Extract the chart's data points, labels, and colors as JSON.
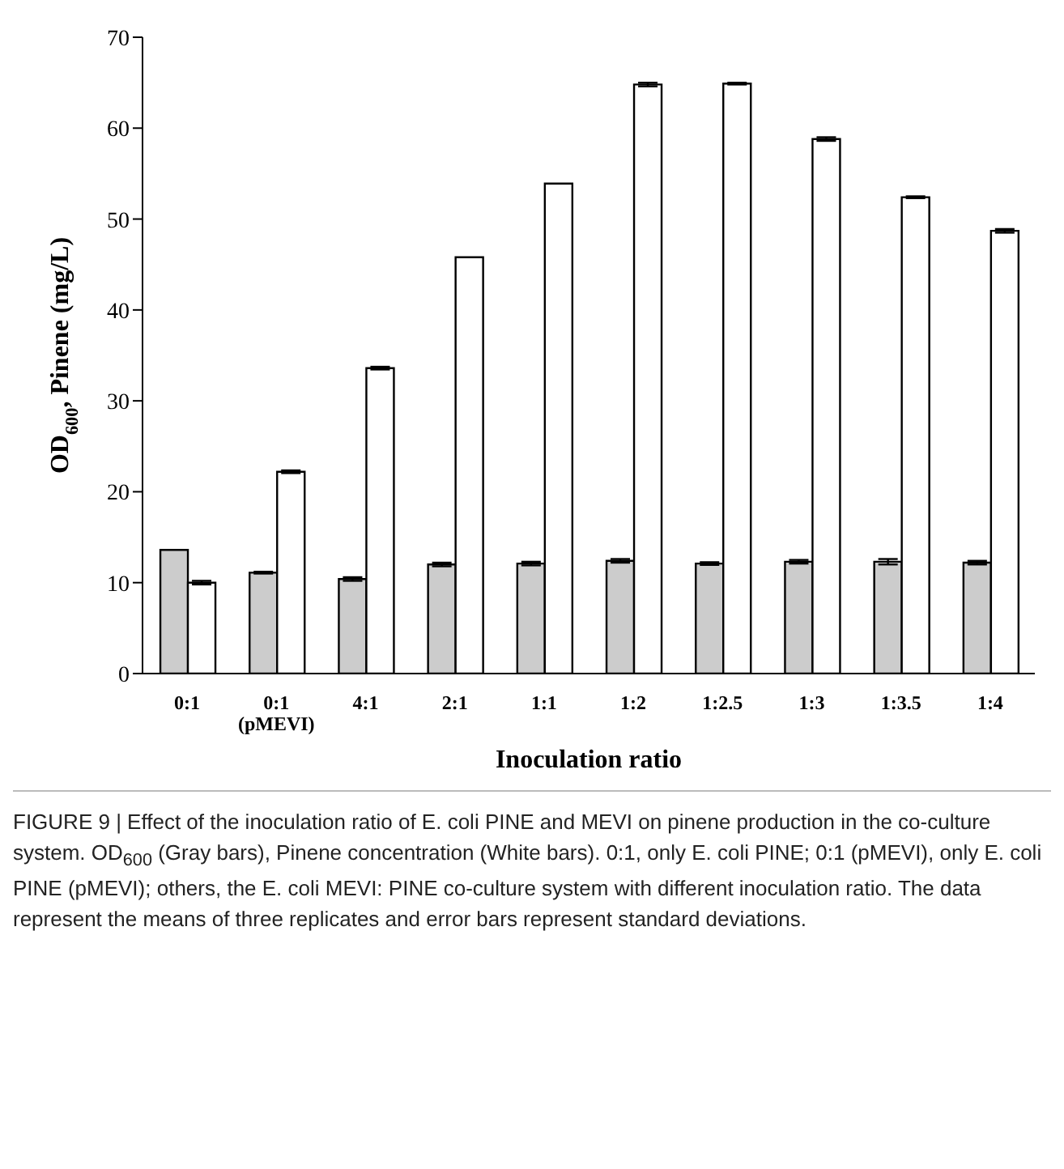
{
  "chart_data": {
    "type": "bar",
    "categories": [
      "0:1",
      "0:1(pMEVI)",
      "4:1",
      "2:1",
      "1:1",
      "1:2",
      "1:2.5",
      "1:3",
      "1:3.5",
      "1:4"
    ],
    "series": [
      {
        "color": "#cccccc",
        "values": [
          13.6,
          11.1,
          10.4,
          12.0,
          12.1,
          12.4,
          12.1,
          12.3,
          12.3,
          12.2
        ],
        "errors": [
          null,
          0.1,
          0.2,
          0.2,
          0.2,
          0.2,
          0.15,
          0.2,
          0.3,
          0.2
        ]
      },
      {
        "color": "#ffffff",
        "values": [
          10.0,
          22.2,
          33.6,
          45.8,
          53.9,
          64.8,
          64.9,
          58.8,
          52.4,
          48.7
        ],
        "errors": [
          0.2,
          0.15,
          0.15,
          null,
          null,
          0.2,
          0.1,
          0.2,
          0.1,
          0.2
        ]
      }
    ],
    "xlabel": "Inoculation ratio",
    "ylabel": "OD$_{600}$, Pinene (mg/L)",
    "ylim": [
      0,
      70
    ],
    "yticks": [
      0,
      10,
      20,
      30,
      40,
      50,
      60,
      70
    ],
    "legend": false,
    "grid": false,
    "annotations": [
      "FIGURE 9 | Effect of the inoculation ratio of E. coli PINE and MEVI on pinene production in the co-culture system. OD$_{600}$ (Gray bars), Pinene concentration (White bars). 0:1, only E. coli PINE; 0:1 (pMEVI), only E. coli PINE (pMEVI); others, the E. coli MEVI: PINE co-culture system with different inoculation ratio. The data represent the means of three replicates and error bars represent standard deviations."
    ]
  }
}
